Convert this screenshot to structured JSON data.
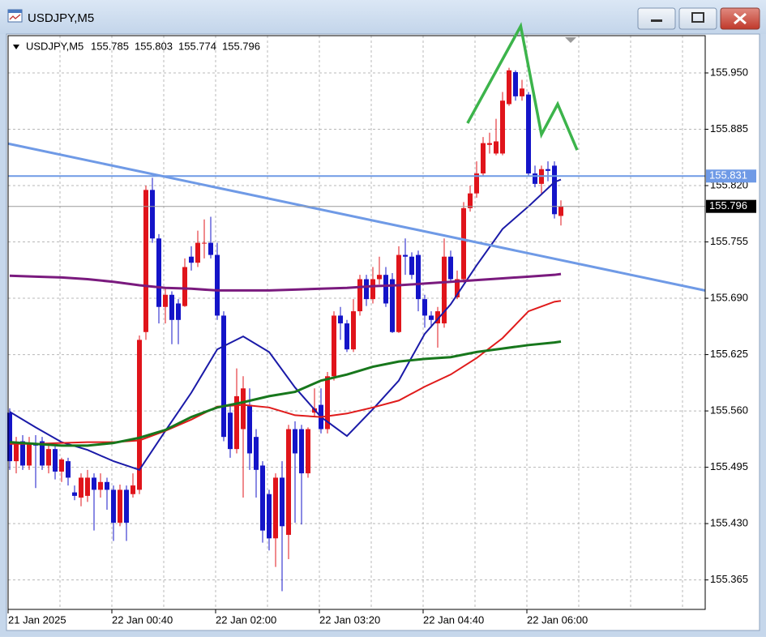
{
  "window_title": "USDJPY,M5",
  "chart_data": {
    "type": "candlestick",
    "title": "USDJPY,M5",
    "categories": [
      "21 Jan 2025",
      null,
      null,
      null,
      null,
      null,
      null,
      null,
      null,
      null,
      null,
      null,
      null,
      null,
      null,
      null,
      "22 Jan 00:40",
      null,
      null,
      null,
      null,
      null,
      null,
      null,
      null,
      null,
      null,
      null,
      null,
      null,
      null,
      null,
      "22 Jan 02:00",
      null,
      null,
      null,
      null,
      null,
      null,
      null,
      null,
      null,
      null,
      null,
      null,
      null,
      null,
      null,
      "22 Jan 03:20",
      null,
      null,
      null,
      null,
      null,
      null,
      null,
      null,
      null,
      null,
      null,
      null,
      null,
      null,
      null,
      "22 Jan 04:40",
      null,
      null,
      null,
      null,
      null,
      null,
      null,
      null,
      null,
      null,
      null,
      null,
      null,
      null,
      null,
      "22 Jan 06:00",
      null,
      null,
      null,
      null,
      null
    ],
    "open": [
      155.558,
      155.502,
      155.525,
      155.497,
      155.522,
      155.525,
      155.497,
      155.516,
      155.49,
      155.502,
      155.466,
      155.46,
      155.462,
      155.483,
      155.469,
      155.478,
      155.469,
      155.431,
      155.469,
      155.464,
      155.469,
      155.651,
      155.815,
      155.759,
      155.68,
      155.694,
      155.684,
      155.681,
      155.738,
      155.731,
      155.754,
      155.754,
      155.74,
      155.67,
      155.558,
      155.516,
      155.539,
      155.567,
      155.53,
      155.497,
      155.464,
      155.413,
      155.483,
      155.417,
      155.539,
      155.539,
      155.488,
      155.558,
      155.567,
      155.539,
      155.6,
      155.67,
      155.661,
      155.631,
      155.675,
      155.712,
      155.689,
      155.712,
      155.717,
      155.712,
      155.651,
      155.74,
      155.738,
      155.74,
      155.689,
      155.67,
      155.661,
      155.661,
      155.738,
      155.691,
      155.712,
      155.794,
      155.811,
      155.834,
      155.867,
      155.857,
      155.857,
      155.914,
      155.951,
      155.923,
      155.925,
      155.834,
      155.822,
      155.839,
      155.843,
      155.785
    ],
    "high": [
      155.563,
      155.53,
      155.532,
      155.53,
      155.532,
      155.53,
      155.52,
      155.52,
      155.506,
      155.506,
      155.474,
      155.488,
      155.492,
      155.488,
      155.488,
      155.483,
      155.474,
      155.475,
      155.474,
      155.488,
      155.647,
      155.82,
      155.829,
      155.764,
      155.703,
      155.698,
      155.689,
      155.736,
      155.75,
      155.768,
      155.781,
      155.784,
      155.754,
      155.675,
      155.567,
      155.609,
      155.6,
      155.586,
      155.539,
      155.502,
      155.469,
      155.488,
      155.502,
      155.544,
      155.548,
      155.544,
      155.541,
      155.586,
      155.586,
      155.605,
      155.675,
      155.68,
      155.665,
      155.689,
      155.717,
      155.717,
      155.726,
      155.738,
      155.726,
      155.719,
      155.75,
      155.759,
      155.743,
      155.745,
      155.694,
      155.675,
      155.68,
      155.759,
      155.745,
      155.722,
      155.801,
      155.82,
      155.848,
      155.876,
      155.881,
      155.897,
      155.928,
      155.956,
      155.953,
      155.942,
      155.928,
      155.843,
      155.843,
      155.848,
      155.848,
      155.803
    ],
    "low": [
      155.492,
      155.488,
      155.492,
      155.492,
      155.471,
      155.492,
      155.488,
      155.481,
      155.478,
      155.474,
      155.457,
      155.45,
      155.455,
      155.422,
      155.46,
      155.446,
      155.41,
      155.427,
      155.41,
      155.46,
      155.464,
      155.642,
      155.754,
      155.661,
      155.661,
      155.637,
      155.637,
      155.68,
      155.722,
      155.726,
      155.736,
      155.736,
      155.665,
      155.525,
      155.506,
      155.511,
      155.46,
      155.492,
      155.46,
      155.408,
      155.399,
      155.38,
      155.352,
      155.389,
      155.431,
      155.429,
      155.483,
      155.553,
      155.534,
      155.534,
      155.595,
      155.642,
      155.628,
      155.628,
      155.67,
      155.681,
      155.684,
      155.706,
      155.68,
      155.65,
      155.65,
      155.717,
      155.712,
      155.675,
      155.656,
      155.656,
      155.633,
      155.656,
      155.708,
      155.689,
      155.708,
      155.79,
      155.806,
      155.831,
      155.857,
      155.855,
      155.855,
      155.912,
      155.918,
      155.918,
      155.831,
      155.818,
      155.811,
      155.825,
      155.782,
      155.774
    ],
    "close": [
      155.502,
      155.522,
      155.497,
      155.522,
      155.52,
      155.497,
      155.516,
      155.49,
      155.504,
      155.483,
      155.462,
      155.483,
      155.483,
      155.469,
      155.478,
      155.469,
      155.431,
      155.469,
      155.431,
      155.474,
      155.642,
      155.815,
      155.759,
      155.68,
      155.694,
      155.665,
      155.665,
      155.726,
      155.731,
      155.754,
      155.754,
      155.74,
      155.67,
      155.53,
      155.516,
      155.577,
      155.586,
      155.511,
      155.492,
      155.422,
      155.413,
      155.483,
      155.427,
      155.539,
      155.511,
      155.488,
      155.539,
      155.563,
      155.539,
      155.6,
      155.67,
      155.661,
      155.631,
      155.675,
      155.712,
      155.689,
      155.712,
      155.717,
      155.684,
      155.651,
      155.74,
      155.738,
      155.717,
      155.689,
      155.67,
      155.665,
      155.675,
      155.738,
      155.712,
      155.712,
      155.794,
      155.811,
      155.834,
      155.869,
      155.869,
      155.871,
      155.918,
      155.953,
      155.923,
      155.932,
      155.834,
      155.822,
      155.839,
      155.837,
      155.787,
      155.796
    ],
    "up_color": "#e0141b",
    "down_color": "#1414c8",
    "ylim": [
      155.331,
      155.993
    ],
    "yticks": [
      {
        "value": 155.95,
        "label": "155.950"
      },
      155.885,
      {
        "value": 155.82,
        "label": "155.820"
      },
      155.755,
      {
        "value": 155.69,
        "label": "155.690"
      },
      155.625,
      {
        "value": 155.56,
        "label": "155.560"
      },
      155.495,
      {
        "value": 155.43,
        "label": "155.430"
      },
      155.365
    ],
    "grid": true,
    "series": [
      {
        "color": "#1a1aa8",
        "x": [
          0,
          4,
          8,
          12,
          16,
          20,
          24,
          28,
          32,
          36,
          40,
          44,
          48,
          52,
          56,
          60,
          64,
          68,
          72,
          76,
          80,
          84,
          85
        ],
        "values": [
          155.559,
          155.541,
          155.524,
          155.515,
          155.502,
          155.492,
          155.537,
          155.581,
          155.631,
          155.646,
          155.628,
          155.587,
          155.553,
          155.531,
          155.562,
          155.595,
          155.649,
          155.683,
          155.728,
          155.77,
          155.796,
          155.824,
          155.827
        ]
      },
      {
        "color": "#e01b1b",
        "x": [
          0,
          4,
          8,
          12,
          16,
          20,
          24,
          28,
          32,
          36,
          40,
          44,
          48,
          52,
          56,
          60,
          64,
          68,
          72,
          76,
          80,
          84,
          85
        ],
        "values": [
          155.522,
          155.522,
          155.523,
          155.524,
          155.524,
          155.526,
          155.537,
          155.55,
          155.565,
          155.567,
          155.564,
          155.555,
          155.553,
          155.557,
          155.564,
          155.572,
          155.588,
          155.602,
          155.621,
          155.644,
          155.675,
          155.686,
          155.687
        ]
      },
      {
        "color": "#17771c",
        "x": [
          0,
          4,
          8,
          12,
          16,
          20,
          24,
          28,
          32,
          36,
          40,
          44,
          48,
          52,
          56,
          60,
          64,
          68,
          72,
          76,
          80,
          84,
          85
        ],
        "values": [
          155.524,
          155.522,
          155.52,
          155.52,
          155.523,
          155.529,
          155.538,
          155.553,
          155.564,
          155.57,
          155.577,
          155.582,
          155.595,
          155.602,
          155.611,
          155.617,
          155.62,
          155.622,
          155.628,
          155.632,
          155.636,
          155.639,
          155.64
        ]
      },
      {
        "color": "#7a1a7e",
        "x": [
          0,
          4,
          8,
          12,
          16,
          20,
          24,
          28,
          32,
          36,
          40,
          44,
          48,
          52,
          56,
          60,
          64,
          68,
          72,
          76,
          80,
          84,
          85
        ],
        "values": [
          155.716,
          155.715,
          155.714,
          155.712,
          155.709,
          155.705,
          155.702,
          155.701,
          155.699,
          155.699,
          155.699,
          155.7,
          155.701,
          155.702,
          155.704,
          155.705,
          155.707,
          155.709,
          155.711,
          155.713,
          155.715,
          155.717,
          155.718
        ]
      }
    ],
    "trendline": {
      "color": "#6f9ae6",
      "x": [
        0,
        85
      ],
      "values": [
        155.868,
        155.734
      ]
    },
    "hline": {
      "color": "#6f9ae6",
      "value": 155.831
    },
    "drawing": {
      "color": "#3cb44b",
      "x": [
        70.6,
        78.8,
        82,
        84.5,
        87.5
      ],
      "values": [
        155.892,
        156.004,
        155.879,
        155.914,
        155.861
      ]
    }
  }
}
